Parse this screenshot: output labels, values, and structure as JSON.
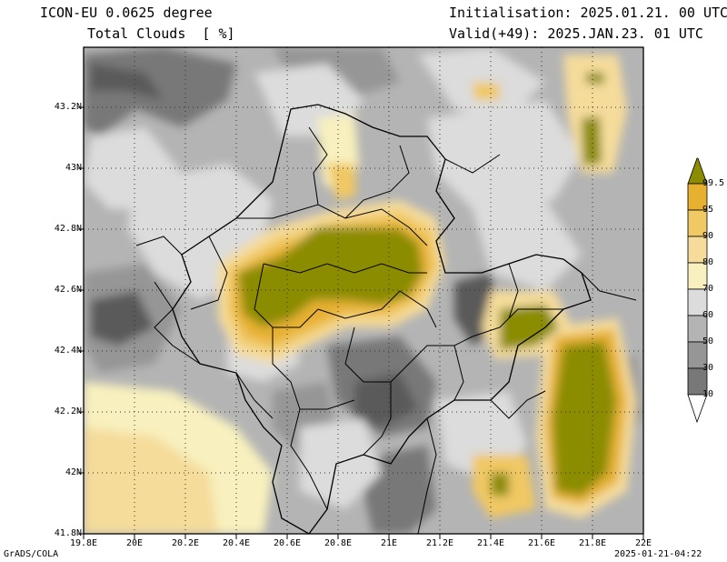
{
  "header": {
    "model": "ICON-EU 0.0625 degree",
    "variable": "Total Clouds  [ %]",
    "init": "Initialisation: 2025.01.21. 00 UTC",
    "valid": "Valid(+49): 2025.JAN.23. 01 UTC"
  },
  "axes": {
    "lat_ticks": [
      "43.2N",
      "43N",
      "42.8N",
      "42.6N",
      "42.4N",
      "42.2N",
      "42N",
      "41.8N"
    ],
    "lon_ticks": [
      "19.8E",
      "20E",
      "20.2E",
      "20.4E",
      "20.6E",
      "20.8E",
      "21E",
      "21.2E",
      "21.4E",
      "21.6E",
      "21.8E",
      "22E"
    ]
  },
  "colorbar": {
    "labels": [
      "99.5",
      "95",
      "90",
      "80",
      "70",
      "60",
      "50",
      "30",
      "10"
    ],
    "colors": [
      "#8c8c00",
      "#e6b030",
      "#f0c864",
      "#f5dc9b",
      "#f8f0be",
      "#dcdcdc",
      "#b4b4b4",
      "#969696",
      "#787878",
      "#5a5a5a"
    ]
  },
  "footer": {
    "left": "GrADS/COLA",
    "right": "2025-01-21-04:22"
  }
}
